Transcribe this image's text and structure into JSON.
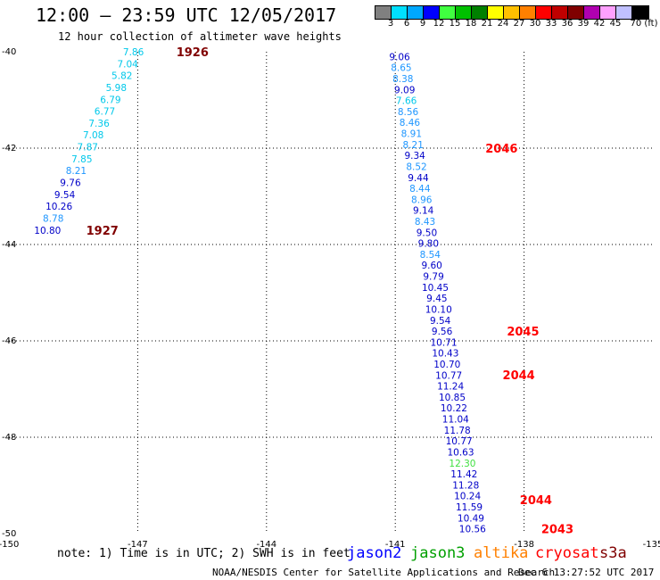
{
  "title": "12:00 — 23:59 UTC 12/05/2017",
  "subtitle": "12 hour collection of altimeter wave heights",
  "color_scale": {
    "labels": [
      "3",
      "6",
      "9",
      "12",
      "15",
      "18",
      "21",
      "24",
      "27",
      "30",
      "33",
      "36",
      "39",
      "42",
      "45",
      "70 (ft)"
    ],
    "colors": [
      "#808080",
      "#00e0ff",
      "#00a8ff",
      "#0000ff",
      "#40ff40",
      "#00c000",
      "#008000",
      "#ffff00",
      "#ffc000",
      "#ff8000",
      "#ff0000",
      "#c00000",
      "#800000",
      "#b000b0",
      "#ffa0ff",
      "#c0c0ff",
      "#000000"
    ]
  },
  "chart_data": {
    "type": "scatter",
    "xlim": [
      -150,
      -135
    ],
    "ylim": [
      -50,
      -40
    ],
    "x_ticks": [
      "-150",
      "-147",
      "-144",
      "-141",
      "-138",
      "-135"
    ],
    "y_ticks": [
      "-40",
      "-42",
      "-44",
      "-46",
      "-48",
      "-50"
    ],
    "tracks": [
      {
        "labels": [
          "7.86",
          "7.04",
          "5.82",
          "5.98",
          "6.79",
          "6.77",
          "7.36",
          "7.08",
          "7.87",
          "7.85",
          "8.21",
          "9.76",
          "9.54",
          "10.26",
          "8.78",
          "10.80"
        ],
        "lon_start": -147.1,
        "lon_end": -149.1,
        "lat_start": -40.0,
        "lat_end": -43.7,
        "colors": [
          "cyan",
          "cyan",
          "cyan",
          "cyan",
          "cyan",
          "cyan",
          "cyan",
          "cyan",
          "cyan",
          "cyan",
          "azure",
          "blue",
          "blue",
          "blue",
          "azure",
          "blue"
        ]
      },
      {
        "labels": [
          "9.06",
          "8.65",
          "8.38",
          "9.09",
          "7.66",
          "8.56",
          "8.46",
          "8.91",
          "8.21",
          "9.34",
          "8.52",
          "9.44",
          "8.44",
          "8.96",
          "9.14",
          "8.43",
          "9.50",
          "9.80",
          "8.54",
          "9.60",
          "9.79",
          "10.45",
          "9.45",
          "10.10",
          "9.54",
          "9.56",
          "10.71",
          "10.43",
          "10.70",
          "10.77",
          "11.24",
          "10.85",
          "10.22",
          "11.04",
          "11.78",
          "10.77",
          "10.63",
          "12.30",
          "11.42",
          "11.28",
          "10.24",
          "11.59",
          "10.49",
          "10.56"
        ],
        "lon_start": -140.9,
        "lon_end": -139.2,
        "lat_start": -40.1,
        "lat_end": -49.9,
        "colors": [
          "blue",
          "azure",
          "azure",
          "blue",
          "cyan",
          "azure",
          "azure",
          "azure",
          "azure",
          "blue",
          "azure",
          "blue",
          "azure",
          "azure",
          "blue",
          "azure",
          "blue",
          "blue",
          "azure",
          "blue",
          "blue",
          "blue",
          "blue",
          "blue",
          "blue",
          "blue",
          "blue",
          "blue",
          "blue",
          "blue",
          "blue",
          "blue",
          "blue",
          "blue",
          "blue",
          "blue",
          "blue",
          "green",
          "blue",
          "blue",
          "blue",
          "blue",
          "blue",
          "blue"
        ]
      }
    ],
    "time_labels": [
      {
        "text": "1926",
        "lon": -146.1,
        "lat": -40.0,
        "color": "darkred"
      },
      {
        "text": "1927",
        "lon": -148.2,
        "lat": -43.7,
        "color": "darkred"
      },
      {
        "text": "2046",
        "lon": -138.9,
        "lat": -42.0,
        "color": "red"
      },
      {
        "text": "2045",
        "lon": -138.4,
        "lat": -45.8,
        "color": "red"
      },
      {
        "text": "2044",
        "lon": -138.5,
        "lat": -46.7,
        "color": "red"
      },
      {
        "text": "2044",
        "lon": -138.1,
        "lat": -49.3,
        "color": "red"
      },
      {
        "text": "2043",
        "lon": -137.6,
        "lat": -49.9,
        "color": "red"
      }
    ],
    "palette": {
      "cyan": "#00c8ea",
      "azure": "#1e96ff",
      "blue": "#0000c8",
      "green": "#40e040",
      "red": "#ff0000",
      "darkred": "#800000"
    }
  },
  "note": "note: 1) Time is in UTC; 2) SWH is in feet",
  "satellites": [
    {
      "name": "jason2",
      "color": "#0000ff"
    },
    {
      "name": "jason3",
      "color": "#00a000"
    },
    {
      "name": "altika",
      "color": "#ff8000"
    },
    {
      "name": "cryosat",
      "color": "#ff0000"
    },
    {
      "name": "s3a",
      "color": "#800000"
    }
  ],
  "footer_left": "NOAA/NESDIS Center for Satellite Applications and Research",
  "footer_right": "Dec  6 13:27:52 UTC 2017"
}
